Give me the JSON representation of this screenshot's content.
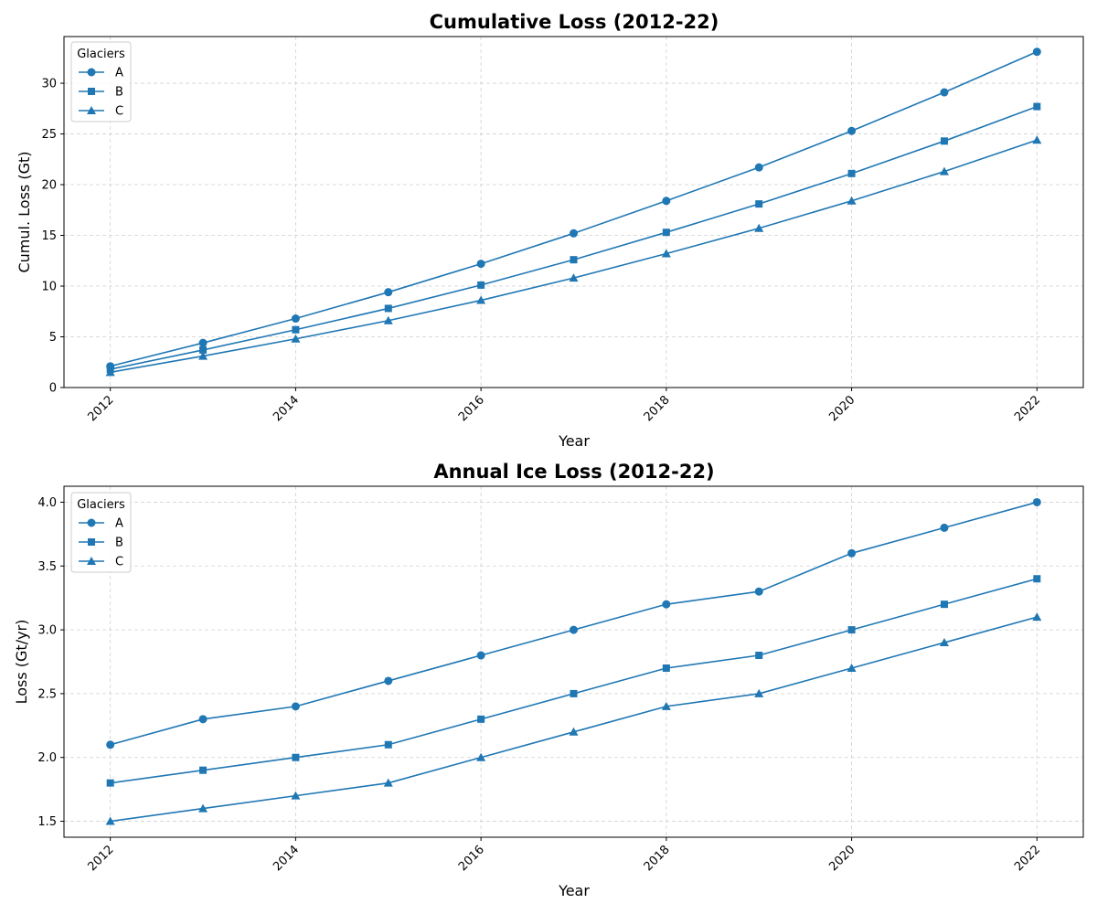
{
  "chart_data": [
    {
      "type": "line",
      "title": "Cumulative Loss (2012-22)",
      "xlabel": "Year",
      "ylabel": "Cumul. Loss (Gt)",
      "x": [
        2012,
        2013,
        2014,
        2015,
        2016,
        2017,
        2018,
        2019,
        2020,
        2021,
        2022
      ],
      "xlim": [
        2011.5,
        2022.5
      ],
      "ylim": [
        0,
        34.6
      ],
      "x_ticks": [
        2012,
        2014,
        2016,
        2018,
        2020,
        2022
      ],
      "y_ticks": [
        0,
        5,
        10,
        15,
        20,
        25,
        30
      ],
      "grid": true,
      "legend_title": "Glaciers",
      "legend_position": "top-left",
      "series": [
        {
          "name": "A",
          "marker": "circle",
          "values": [
            2.1,
            4.4,
            6.8,
            9.4,
            12.2,
            15.2,
            18.4,
            21.7,
            25.3,
            29.1,
            33.1
          ]
        },
        {
          "name": "B",
          "marker": "square",
          "values": [
            1.8,
            3.7,
            5.7,
            7.8,
            10.1,
            12.6,
            15.3,
            18.1,
            21.1,
            24.3,
            27.7
          ]
        },
        {
          "name": "C",
          "marker": "triangle",
          "values": [
            1.5,
            3.1,
            4.8,
            6.6,
            8.6,
            10.8,
            13.2,
            15.7,
            18.4,
            21.3,
            24.4
          ]
        }
      ]
    },
    {
      "type": "line",
      "title": "Annual Ice Loss (2012-22)",
      "xlabel": "Year",
      "ylabel": "Loss (Gt/yr)",
      "x": [
        2012,
        2013,
        2014,
        2015,
        2016,
        2017,
        2018,
        2019,
        2020,
        2021,
        2022
      ],
      "xlim": [
        2011.5,
        2022.5
      ],
      "ylim": [
        1.375,
        4.125
      ],
      "x_ticks": [
        2012,
        2014,
        2016,
        2018,
        2020,
        2022
      ],
      "y_ticks": [
        1.5,
        2.0,
        2.5,
        3.0,
        3.5,
        4.0
      ],
      "grid": true,
      "legend_title": "Glaciers",
      "legend_position": "top-left",
      "series": [
        {
          "name": "A",
          "marker": "circle",
          "values": [
            2.1,
            2.3,
            2.4,
            2.6,
            2.8,
            3.0,
            3.2,
            3.3,
            3.6,
            3.8,
            4.0
          ]
        },
        {
          "name": "B",
          "marker": "square",
          "values": [
            1.8,
            1.9,
            2.0,
            2.1,
            2.3,
            2.5,
            2.7,
            2.8,
            3.0,
            3.2,
            3.4
          ]
        },
        {
          "name": "C",
          "marker": "triangle",
          "values": [
            1.5,
            1.6,
            1.7,
            1.8,
            2.0,
            2.2,
            2.4,
            2.5,
            2.7,
            2.9,
            3.1
          ]
        }
      ]
    }
  ],
  "colors": {
    "series": "#1f77b4",
    "grid": "#d0d0d0",
    "axis": "#000000"
  }
}
